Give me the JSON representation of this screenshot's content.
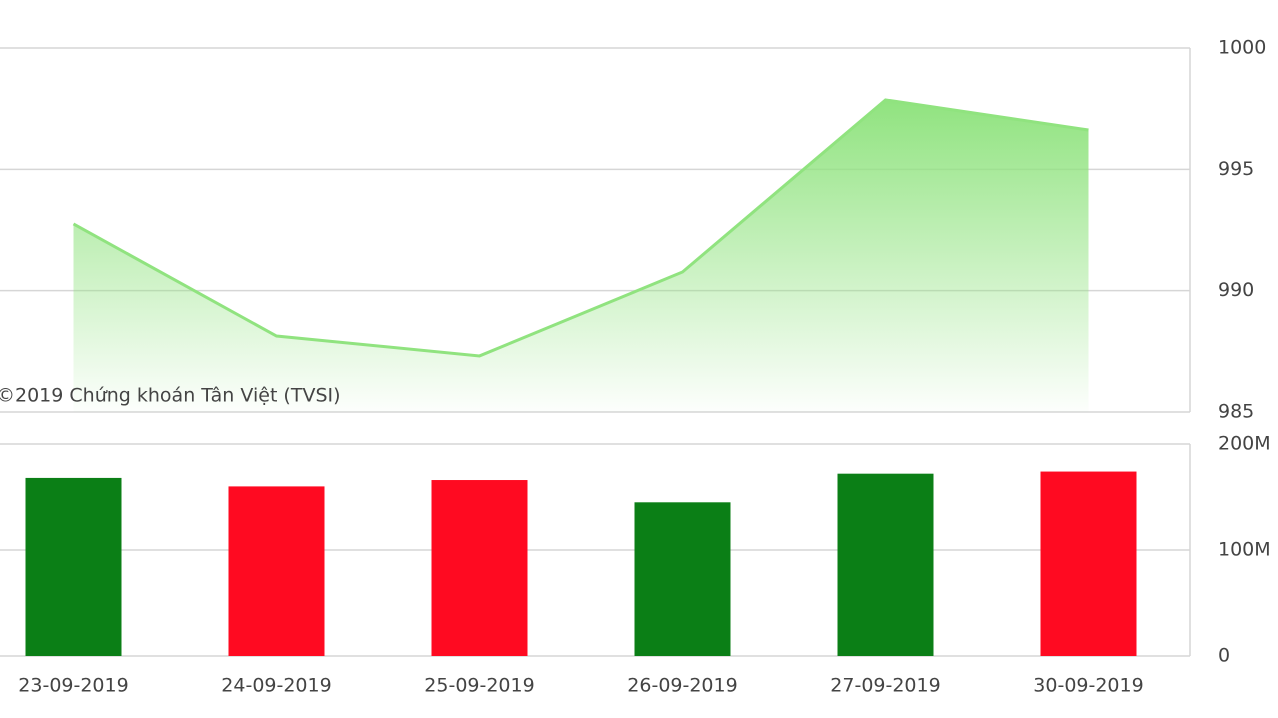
{
  "chart_data": [
    {
      "type": "area",
      "watermark": "©2019 Chứng khoán Tân Việt (TVSI)",
      "values": [
        992.75,
        988.13,
        987.31,
        990.77,
        997.86,
        996.62
      ],
      "color": "#90e37f",
      "ylim": [
        985,
        1000
      ],
      "yticks": [
        985,
        990,
        995,
        1000
      ],
      "grid": true
    },
    {
      "type": "bar",
      "categories": [
        "23-09-2019",
        "24-09-2019",
        "25-09-2019",
        "26-09-2019",
        "27-09-2019",
        "30-09-2019"
      ],
      "values": [
        168000000,
        160000000,
        166000000,
        145000000,
        172000000,
        174000000
      ],
      "colors": [
        "#0b7f16",
        "#ff0a21",
        "#ff0a21",
        "#0b7f16",
        "#0b7f16",
        "#ff0a21"
      ],
      "ylim": [
        0,
        200000000
      ],
      "yticks": [
        0,
        {
          "value": 100000000,
          "label": "100M"
        },
        {
          "value": 200000000,
          "label": "200M"
        }
      ],
      "grid": true
    }
  ]
}
